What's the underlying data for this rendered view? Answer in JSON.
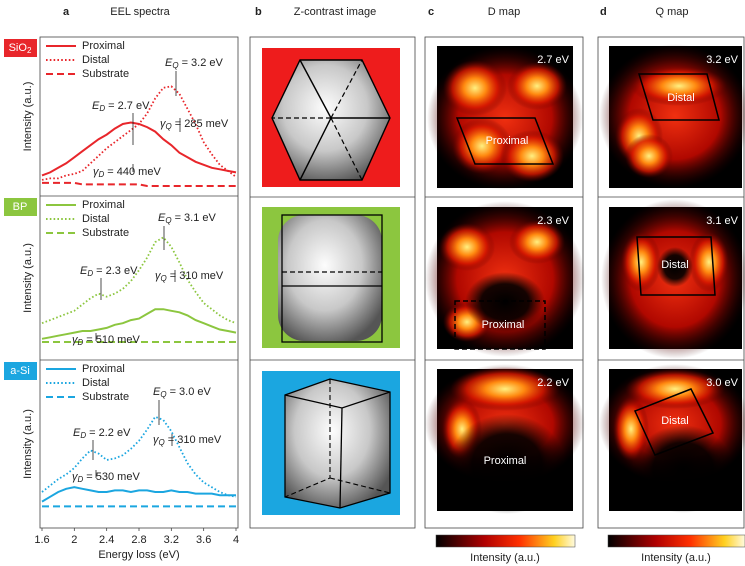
{
  "panels": [
    {
      "letter": "a",
      "title": "EEL spectra"
    },
    {
      "letter": "b",
      "title": "Z-contrast image"
    },
    {
      "letter": "c",
      "title": "D map"
    },
    {
      "letter": "d",
      "title": "Q map"
    }
  ],
  "chart_data": [
    {
      "type": "line",
      "sample": "SiO",
      "sample_sub": "2",
      "color": "#e8262b",
      "ylabel": "Intensity (a.u.)",
      "x": [
        1.6,
        1.7,
        1.8,
        1.9,
        2.0,
        2.1,
        2.2,
        2.3,
        2.4,
        2.5,
        2.6,
        2.7,
        2.8,
        2.9,
        3.0,
        3.1,
        3.2,
        3.3,
        3.4,
        3.5,
        3.6,
        3.7,
        3.8,
        3.9,
        4.0
      ],
      "xlim": [
        1.6,
        4.0
      ],
      "ylim": [
        0,
        10
      ],
      "series": [
        {
          "name": "Proximal",
          "style": "solid",
          "values": [
            1.1,
            1.3,
            1.6,
            1.9,
            2.3,
            2.7,
            3.1,
            3.5,
            3.8,
            4.2,
            4.5,
            4.6,
            4.5,
            4.3,
            4.0,
            3.5,
            3.1,
            2.6,
            2.3,
            2.0,
            1.8,
            1.6,
            1.5,
            1.4,
            1.3
          ]
        },
        {
          "name": "Distal",
          "style": "dotted",
          "values": [
            0.8,
            0.9,
            0.9,
            1.1,
            1.2,
            1.4,
            1.9,
            2.4,
            2.9,
            3.3,
            3.7,
            4.1,
            4.5,
            5.2,
            6.2,
            6.9,
            7.0,
            6.5,
            5.5,
            4.5,
            3.3,
            2.5,
            1.8,
            1.4,
            1.0
          ]
        },
        {
          "name": "Substrate",
          "style": "dashed",
          "values": [
            0.6,
            0.6,
            0.6,
            0.6,
            0.6,
            0.5,
            0.5,
            0.5,
            0.5,
            0.5,
            0.5,
            0.5,
            0.5,
            0.4,
            0.4,
            0.4,
            0.4,
            0.4,
            0.4,
            0.4,
            0.4,
            0.4,
            0.4,
            0.4,
            0.4
          ]
        }
      ],
      "annotations": [
        {
          "symbol": "E",
          "sub": "Q",
          "text": "= 3.2 eV"
        },
        {
          "symbol": "E",
          "sub": "D",
          "text": "= 2.7 eV"
        },
        {
          "symbol": "γ",
          "sub": "Q",
          "text": "= 285 meV"
        },
        {
          "symbol": "γ",
          "sub": "D",
          "text": "= 440 meV"
        }
      ]
    },
    {
      "type": "line",
      "sample": "BP",
      "color": "#8cc63f",
      "ylabel": "Intensity (a.u.)",
      "x": [
        1.6,
        1.7,
        1.8,
        1.9,
        2.0,
        2.1,
        2.2,
        2.3,
        2.4,
        2.5,
        2.6,
        2.7,
        2.8,
        2.9,
        3.0,
        3.1,
        3.2,
        3.3,
        3.4,
        3.5,
        3.6,
        3.7,
        3.8,
        3.9,
        4.0
      ],
      "xlim": [
        1.6,
        4.0
      ],
      "ylim": [
        0,
        10
      ],
      "series": [
        {
          "name": "Proximal",
          "style": "solid",
          "values": [
            1.1,
            1.2,
            1.3,
            1.4,
            1.5,
            1.6,
            1.6,
            1.7,
            1.8,
            2.0,
            2.1,
            2.3,
            2.4,
            2.7,
            3.0,
            3.0,
            2.9,
            2.8,
            2.6,
            2.3,
            2.1,
            1.9,
            1.7,
            1.6,
            1.5
          ]
        },
        {
          "name": "Distal",
          "style": "dotted",
          "values": [
            2.1,
            2.3,
            2.5,
            2.7,
            2.9,
            3.3,
            3.7,
            4.0,
            3.8,
            4.0,
            4.3,
            4.8,
            5.5,
            6.3,
            7.3,
            7.6,
            7.0,
            6.0,
            4.9,
            4.1,
            3.4,
            3.0,
            2.6,
            2.3,
            2.1
          ]
        },
        {
          "name": "Substrate",
          "style": "dashed",
          "values": [
            0.9,
            0.9,
            0.9,
            0.9,
            0.9,
            0.9,
            0.9,
            0.9,
            0.9,
            0.9,
            0.9,
            0.9,
            0.9,
            0.9,
            0.9,
            0.9,
            0.9,
            0.9,
            0.9,
            0.9,
            0.9,
            0.9,
            0.9,
            0.9,
            0.9
          ]
        }
      ],
      "annotations": [
        {
          "symbol": "E",
          "sub": "Q",
          "text": "= 3.1 eV"
        },
        {
          "symbol": "E",
          "sub": "D",
          "text": "= 2.3 eV"
        },
        {
          "symbol": "γ",
          "sub": "Q",
          "text": "= 310 meV"
        },
        {
          "symbol": "γ",
          "sub": "D",
          "text": "= 510 meV"
        }
      ]
    },
    {
      "type": "line",
      "sample": "a-Si",
      "color": "#1ba6e0",
      "ylabel": "Intensity (a.u.)",
      "xlabel": "Energy loss (eV)",
      "x": [
        1.6,
        1.7,
        1.8,
        1.9,
        2.0,
        2.1,
        2.2,
        2.3,
        2.4,
        2.5,
        2.6,
        2.7,
        2.8,
        2.9,
        3.0,
        3.1,
        3.2,
        3.3,
        3.4,
        3.5,
        3.6,
        3.7,
        3.8,
        3.9,
        4.0
      ],
      "xlim": [
        1.6,
        4.0
      ],
      "ylim": [
        0,
        10
      ],
      "xticks": [
        1.6,
        2.0,
        2.4,
        2.8,
        3.2,
        3.6,
        4.0
      ],
      "series": [
        {
          "name": "Proximal",
          "style": "solid",
          "values": [
            1.4,
            1.7,
            2.0,
            2.2,
            2.3,
            2.2,
            2.1,
            2.0,
            2.0,
            2.1,
            2.1,
            2.0,
            2.1,
            2.1,
            2.0,
            2.0,
            2.1,
            2.0,
            2.0,
            1.9,
            1.9,
            1.9,
            1.8,
            1.8,
            1.8
          ]
        },
        {
          "name": "Distal",
          "style": "dotted",
          "values": [
            2.0,
            2.4,
            2.8,
            3.1,
            3.5,
            4.1,
            4.6,
            4.4,
            4.0,
            4.1,
            4.3,
            4.7,
            5.2,
            5.9,
            6.7,
            6.5,
            5.8,
            4.8,
            3.8,
            3.1,
            2.6,
            2.3,
            2.0,
            1.8,
            1.7
          ]
        },
        {
          "name": "Substrate",
          "style": "dashed",
          "values": [
            1.1,
            1.1,
            1.1,
            1.1,
            1.1,
            1.1,
            1.1,
            1.1,
            1.1,
            1.1,
            1.1,
            1.1,
            1.1,
            1.1,
            1.1,
            1.1,
            1.1,
            1.1,
            1.1,
            1.1,
            1.1,
            1.1,
            1.1,
            1.1,
            1.1
          ]
        }
      ],
      "annotations": [
        {
          "symbol": "E",
          "sub": "Q",
          "text": "= 3.0 eV"
        },
        {
          "symbol": "E",
          "sub": "D",
          "text": "= 2.2 eV"
        },
        {
          "symbol": "γ",
          "sub": "Q",
          "text": "= 310 meV"
        },
        {
          "symbol": "γ",
          "sub": "D",
          "text": "= 530 meV"
        }
      ]
    }
  ],
  "d_map": [
    {
      "energy": "2.7 eV",
      "region": "Proximal"
    },
    {
      "energy": "2.3 eV",
      "region": "Proximal"
    },
    {
      "energy": "2.2 eV",
      "region": "Proximal"
    }
  ],
  "q_map": [
    {
      "energy": "3.2 eV",
      "region": "Distal"
    },
    {
      "energy": "3.1 eV",
      "region": "Distal"
    },
    {
      "energy": "3.0 eV",
      "region": "Distal"
    }
  ],
  "colorbar_label": "Intensity (a.u.)"
}
